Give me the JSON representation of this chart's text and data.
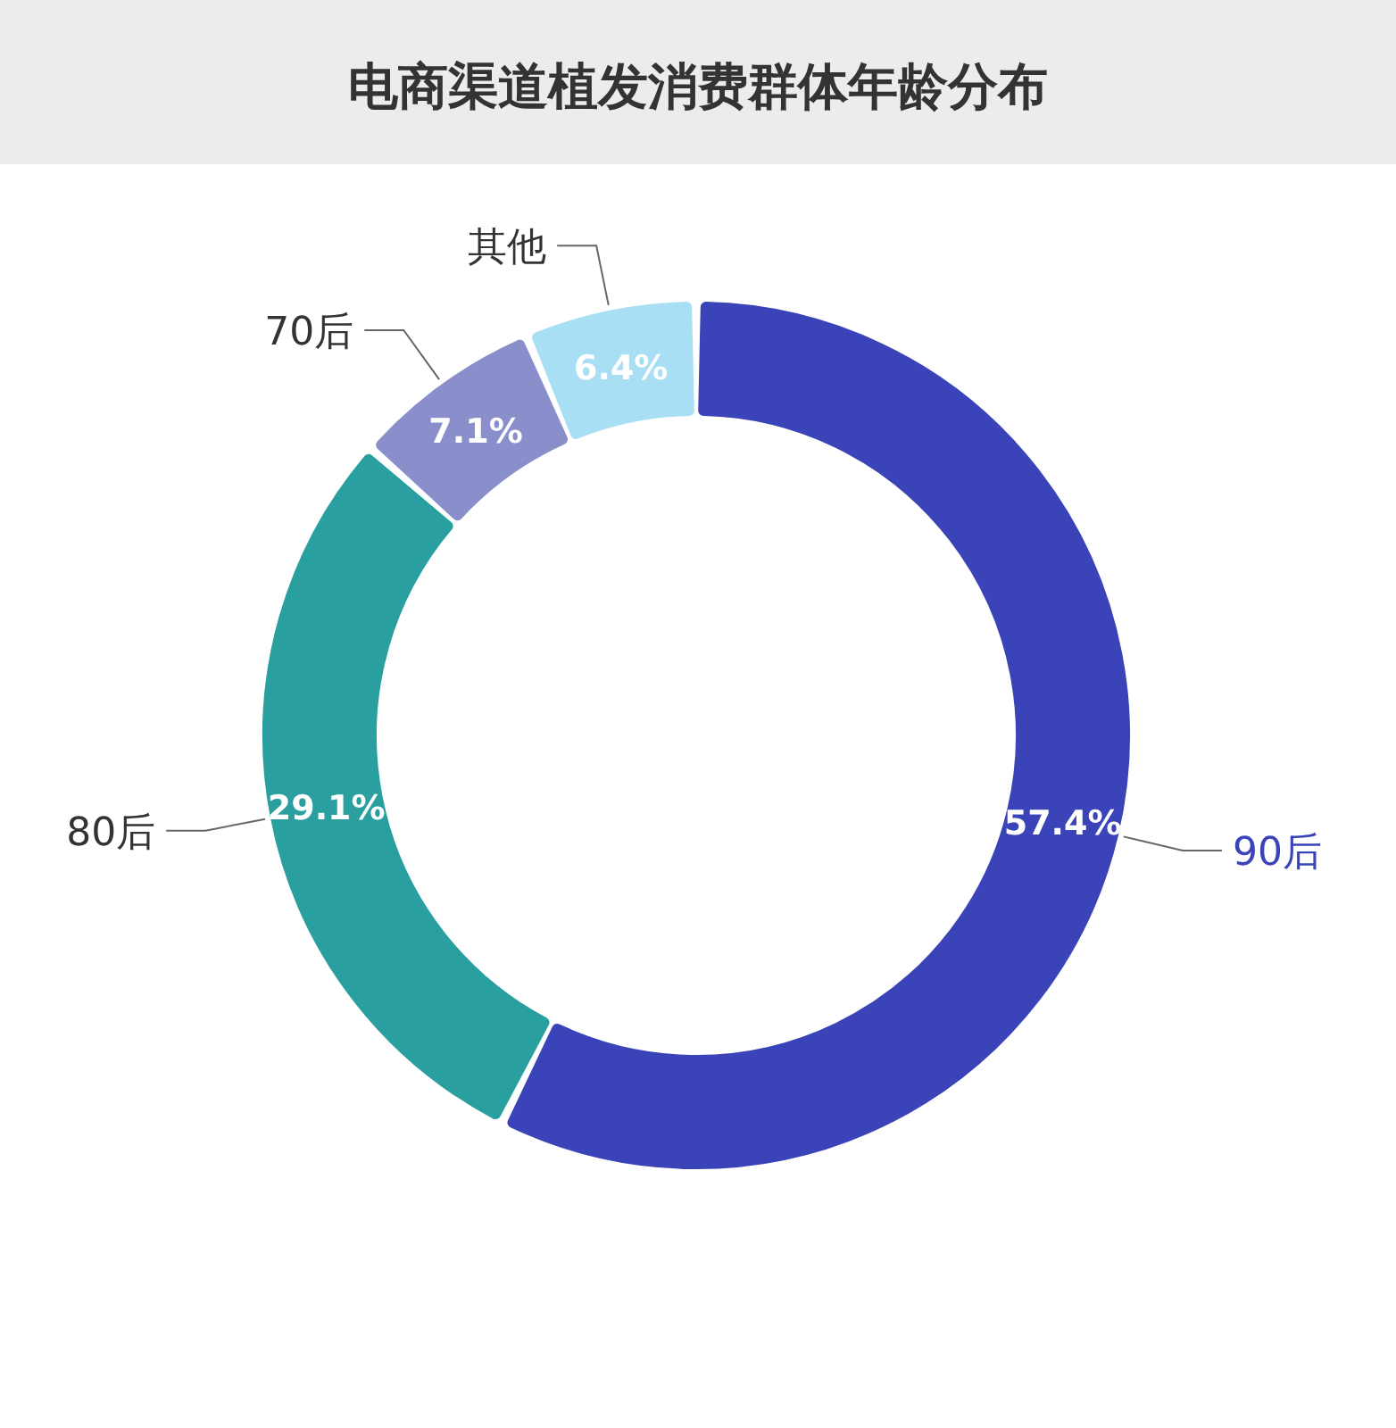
{
  "chart_data": {
    "type": "donut",
    "title": "电商渠道植发消费群体年龄分布",
    "categories": [
      "90后",
      "80后",
      "70后",
      "其他"
    ],
    "values": [
      57.4,
      29.1,
      7.1,
      6.4
    ],
    "colors": [
      "#3a44b8",
      "#2a9fa0",
      "#8a8fcc",
      "#a9dff5"
    ],
    "value_labels": [
      "57.4%",
      "29.1%",
      "7.1%",
      "6.4%"
    ],
    "legend": false
  }
}
